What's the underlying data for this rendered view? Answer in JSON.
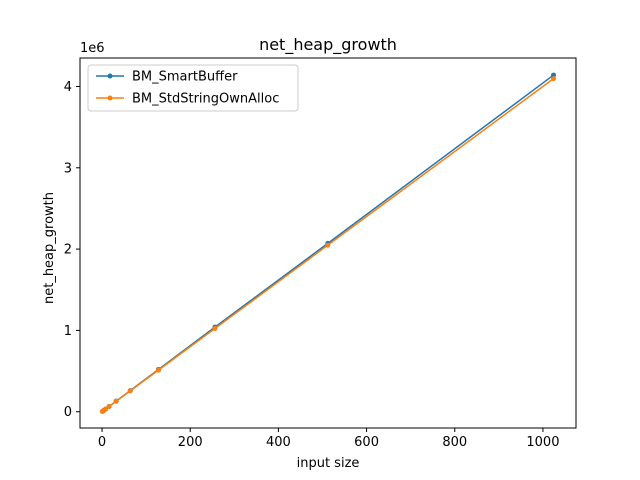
{
  "chart_data": {
    "type": "line",
    "title": "net_heap_growth",
    "xlabel": "input size",
    "ylabel": "net_heap_growth",
    "y_scale_label": "1e6",
    "xlim": [
      -50,
      1075
    ],
    "ylim": [
      -200000,
      4350000
    ],
    "x_ticks": [
      0,
      200,
      400,
      600,
      800,
      1000
    ],
    "x_tick_labels": [
      "0",
      "200",
      "400",
      "600",
      "800",
      "1000"
    ],
    "y_ticks": [
      0,
      1000000,
      2000000,
      3000000,
      4000000
    ],
    "y_tick_labels": [
      "0",
      "1",
      "2",
      "3",
      "4"
    ],
    "grid": false,
    "legend_position": "upper-left",
    "series": [
      {
        "name": "BM_SmartBuffer",
        "color": "#1f77b4",
        "marker": "dot",
        "x": [
          1,
          2,
          4,
          8,
          16,
          32,
          64,
          128,
          256,
          512,
          1024
        ],
        "y": [
          4000,
          8000,
          16000,
          32000,
          65000,
          130000,
          260000,
          520000,
          1040000,
          2070000,
          4140000
        ]
      },
      {
        "name": "BM_StdStringOwnAlloc",
        "color": "#ff7f0e",
        "marker": "dot",
        "x": [
          1,
          2,
          4,
          8,
          16,
          32,
          64,
          128,
          256,
          512,
          1024
        ],
        "y": [
          4000,
          8000,
          16000,
          32000,
          64000,
          128000,
          256000,
          512000,
          1024000,
          2048000,
          4096000
        ]
      }
    ]
  }
}
